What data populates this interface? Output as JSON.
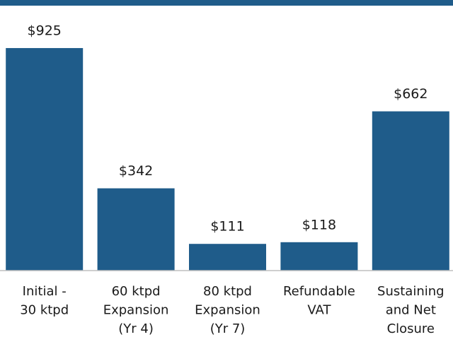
{
  "chart_data": {
    "type": "bar",
    "categories": [
      [
        "Initial -",
        "30 ktpd"
      ],
      [
        "60 ktpd",
        "Expansion",
        "(Yr 4)"
      ],
      [
        "80 ktpd",
        "Expansion",
        "(Yr 7)"
      ],
      [
        "Refundable",
        "VAT"
      ],
      [
        "Sustaining",
        "and Net",
        "Closure"
      ]
    ],
    "values": [
      925,
      342,
      111,
      118,
      662
    ],
    "value_labels": [
      "$925",
      "$342",
      "$111",
      "$118",
      "$662"
    ],
    "color": "#1f5c8a",
    "ylim": [
      0,
      1000
    ]
  }
}
